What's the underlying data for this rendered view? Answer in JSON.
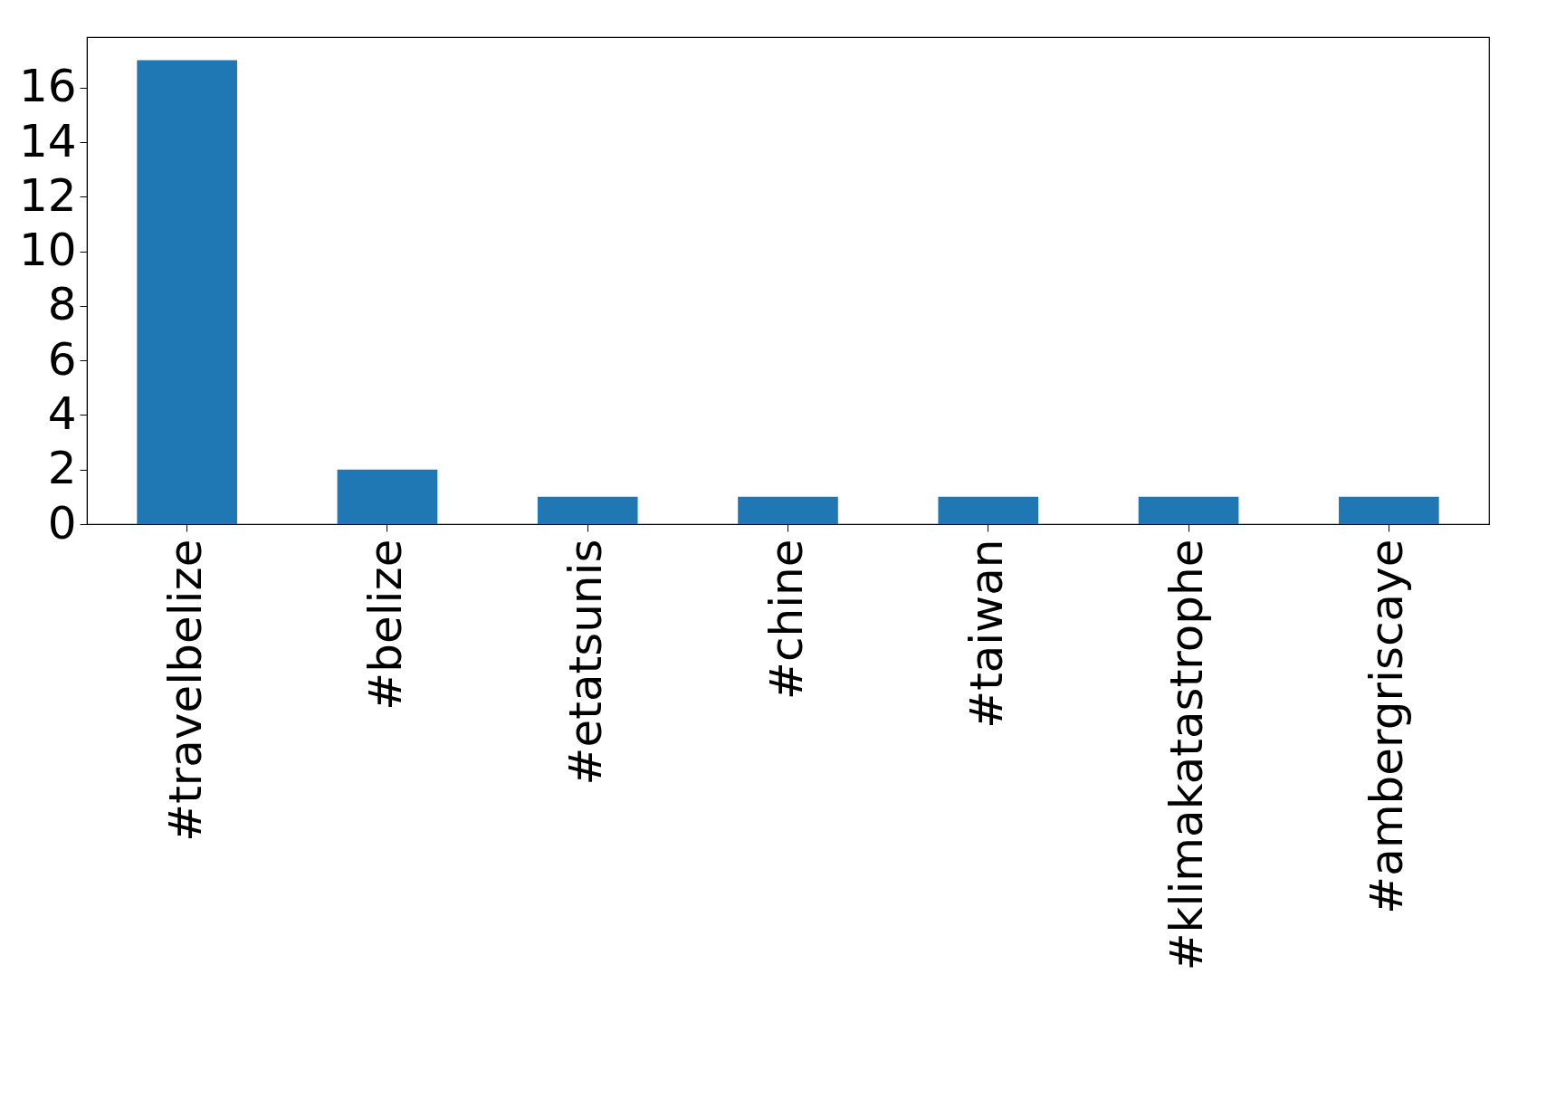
{
  "chart_data": {
    "type": "bar",
    "categories": [
      "#travelbelize",
      "#belize",
      "#etatsunis",
      "#chine",
      "#taiwan",
      "#klimakatastrophe",
      "#ambergriscaye"
    ],
    "values": [
      17,
      2,
      1,
      1,
      1,
      1,
      1
    ],
    "color": "#1f77b4",
    "ylim": [
      0,
      17.85
    ],
    "yticks": [
      0,
      2,
      4,
      6,
      8,
      10,
      12,
      14,
      16
    ]
  }
}
